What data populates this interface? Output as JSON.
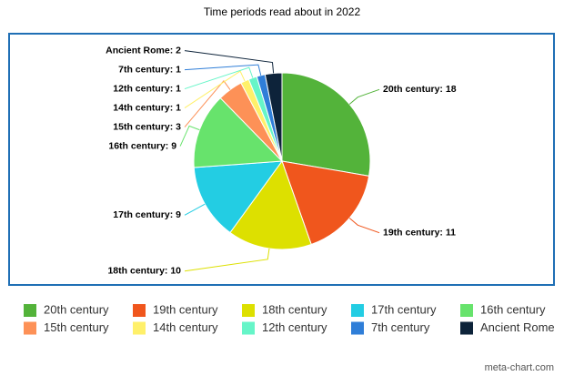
{
  "chart_data": {
    "type": "pie",
    "title": "Time periods read about in 2022",
    "categories": [
      "20th century",
      "19th century",
      "18th century",
      "17th century",
      "16th century",
      "15th century",
      "14th century",
      "12th century",
      "7th century",
      "Ancient Rome"
    ],
    "values": [
      18,
      11,
      10,
      9,
      9,
      3,
      1,
      1,
      1,
      2
    ],
    "value_labels": [
      "20th century: 18",
      "19th century: 11",
      "18th century: 10",
      "17th century: 9",
      "16th century: 9",
      "15th century: 3",
      "14th century: 1",
      "12th century: 1",
      "7th century: 1",
      "Ancient Rome: 2"
    ],
    "colors": [
      "#53b33a",
      "#f0561d",
      "#dde000",
      "#23cde3",
      "#67e36c",
      "#fd9157",
      "#fff06a",
      "#66f5c8",
      "#2f7ed8",
      "#0d233a"
    ],
    "legend": "bottom",
    "credit": "meta-chart.com"
  }
}
